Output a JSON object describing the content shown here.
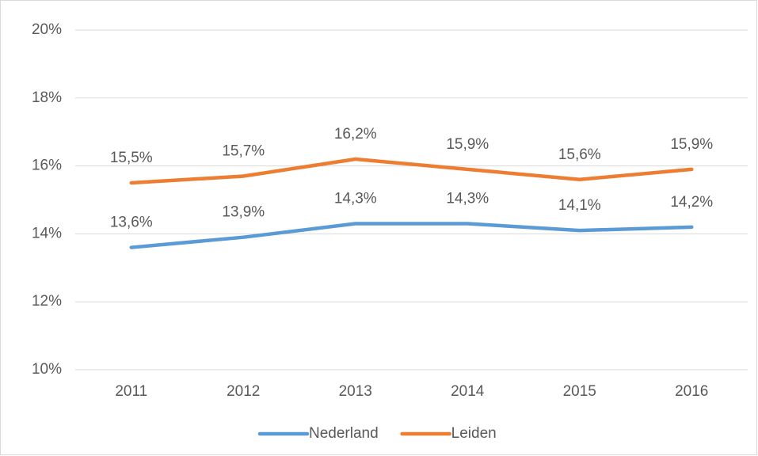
{
  "chart_data": {
    "type": "line",
    "categories": [
      "2011",
      "2012",
      "2013",
      "2014",
      "2015",
      "2016"
    ],
    "series": [
      {
        "name": "Nederland",
        "color": "#5b9bd5",
        "values": [
          13.6,
          13.9,
          14.3,
          14.3,
          14.1,
          14.2
        ],
        "value_labels": [
          "13,6%",
          "13,9%",
          "14,3%",
          "14,3%",
          "14,1%",
          "14,2%"
        ]
      },
      {
        "name": "Leiden",
        "color": "#ed7d31",
        "values": [
          15.5,
          15.7,
          16.2,
          15.9,
          15.6,
          15.9
        ],
        "value_labels": [
          "15,5%",
          "15,7%",
          "16,2%",
          "15,9%",
          "15,6%",
          "15,9%"
        ]
      }
    ],
    "ylim": [
      10,
      20
    ],
    "yticks": [
      {
        "value": 10,
        "label": "10%"
      },
      {
        "value": 12,
        "label": "12%"
      },
      {
        "value": 14,
        "label": "14%"
      },
      {
        "value": 16,
        "label": "16%"
      },
      {
        "value": 18,
        "label": "18%"
      },
      {
        "value": 20,
        "label": "20%"
      }
    ],
    "grid": true,
    "legend": "bottom"
  }
}
